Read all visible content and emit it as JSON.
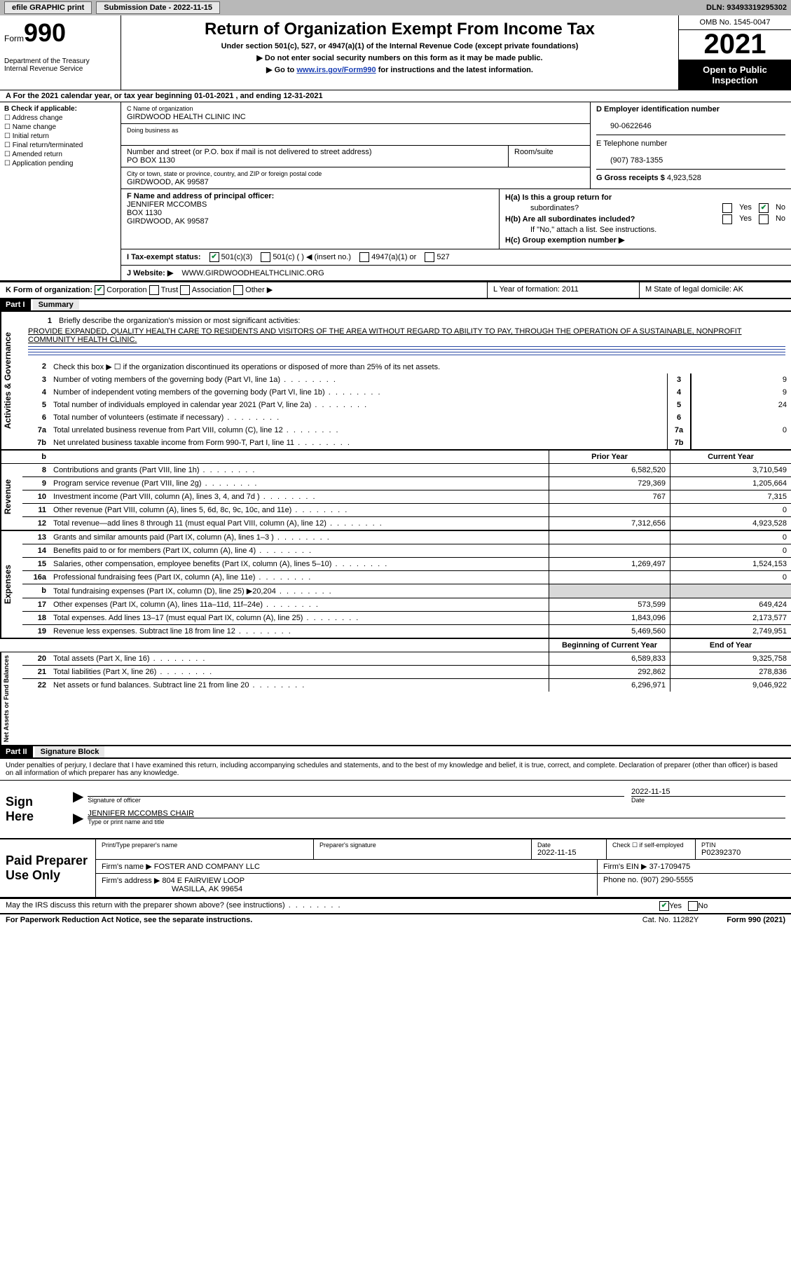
{
  "topbar": {
    "efile": "efile GRAPHIC print",
    "submission": "Submission Date - 2022-11-15",
    "dln": "DLN: 93493319295302"
  },
  "header": {
    "form_prefix": "Form",
    "form_number": "990",
    "title": "Return of Organization Exempt From Income Tax",
    "sub1": "Under section 501(c), 527, or 4947(a)(1) of the Internal Revenue Code (except private foundations)",
    "sub2": "Do not enter social security numbers on this form as it may be made public.",
    "sub3_prefix": "Go to ",
    "sub3_link": "www.irs.gov/Form990",
    "sub3_suffix": " for instructions and the latest information.",
    "dept": "Department of the Treasury\nInternal Revenue Service",
    "omb": "OMB No. 1545-0047",
    "year": "2021",
    "open": "Open to Public Inspection"
  },
  "row_a": "A For the 2021 calendar year, or tax year beginning 01-01-2021   , and ending 12-31-2021",
  "section_b": {
    "label": "B Check if applicable:",
    "items": [
      "Address change",
      "Name change",
      "Initial return",
      "Final return/terminated",
      "Amended return",
      "Application pending"
    ]
  },
  "section_c": {
    "name_lbl": "C Name of organization",
    "name": "GIRDWOOD HEALTH CLINIC INC",
    "dba_lbl": "Doing business as",
    "dba": "",
    "street_lbl": "Number and street (or P.O. box if mail is not delivered to street address)",
    "room_lbl": "Room/suite",
    "street": "PO BOX 1130",
    "city_lbl": "City or town, state or province, country, and ZIP or foreign postal code",
    "city": "GIRDWOOD, AK  99587"
  },
  "section_d": {
    "lbl": "D Employer identification number",
    "val": "90-0622646"
  },
  "section_e": {
    "lbl": "E Telephone number",
    "val": "(907) 783-1355"
  },
  "section_g": {
    "lbl": "G Gross receipts $",
    "val": "4,923,528"
  },
  "section_f": {
    "lbl": "F Name and address of principal officer:",
    "name": "JENNIFER MCCOMBS",
    "addr1": "BOX 1130",
    "addr2": "GIRDWOOD, AK  99587"
  },
  "section_h": {
    "a1": "H(a)  Is this a group return for",
    "a2": "subordinates?",
    "b1": "H(b)  Are all subordinates included?",
    "b2": "If \"No,\" attach a list. See instructions.",
    "c": "H(c)  Group exemption number ▶"
  },
  "row_i": {
    "lbl": "I   Tax-exempt status:",
    "opts": [
      "501(c)(3)",
      "501(c) (  ) ◀ (insert no.)",
      "4947(a)(1) or",
      "527"
    ]
  },
  "row_j": {
    "lbl": "J   Website: ▶",
    "val": "WWW.GIRDWOODHEALTHCLINIC.ORG"
  },
  "row_k": {
    "k_lbl": "K Form of organization:",
    "k_opts": [
      "Corporation",
      "Trust",
      "Association",
      "Other ▶"
    ],
    "l": "L Year of formation: 2011",
    "m": "M State of legal domicile: AK"
  },
  "part1": {
    "hdr": "Part I",
    "title": "Summary",
    "mission_lbl": "Briefly describe the organization's mission or most significant activities:",
    "mission": "PROVIDE EXPANDED, QUALITY HEALTH CARE TO RESIDENTS AND VISITORS OF THE AREA WITHOUT REGARD TO ABILITY TO PAY, THROUGH THE OPERATION OF A SUSTAINABLE, NONPROFIT COMMUNITY HEALTH CLINIC.",
    "line2": "Check this box ▶ ☐  if the organization discontinued its operations or disposed of more than 25% of its net assets.",
    "lines_ag": [
      {
        "n": "3",
        "desc": "Number of voting members of the governing body (Part VI, line 1a)",
        "v": "9"
      },
      {
        "n": "4",
        "desc": "Number of independent voting members of the governing body (Part VI, line 1b)",
        "v": "9"
      },
      {
        "n": "5",
        "desc": "Total number of individuals employed in calendar year 2021 (Part V, line 2a)",
        "v": "24"
      },
      {
        "n": "6",
        "desc": "Total number of volunteers (estimate if necessary)",
        "v": ""
      },
      {
        "n": "7a",
        "desc": "Total unrelated business revenue from Part VIII, column (C), line 12",
        "v": "0"
      },
      {
        "n": "7b",
        "desc": "Net unrelated business taxable income from Form 990-T, Part I, line 11",
        "v": ""
      }
    ],
    "hdr_prior": "Prior Year",
    "hdr_curr": "Current Year",
    "revenue": [
      {
        "n": "8",
        "desc": "Contributions and grants (Part VIII, line 1h)",
        "p": "6,582,520",
        "c": "3,710,549"
      },
      {
        "n": "9",
        "desc": "Program service revenue (Part VIII, line 2g)",
        "p": "729,369",
        "c": "1,205,664"
      },
      {
        "n": "10",
        "desc": "Investment income (Part VIII, column (A), lines 3, 4, and 7d )",
        "p": "767",
        "c": "7,315"
      },
      {
        "n": "11",
        "desc": "Other revenue (Part VIII, column (A), lines 5, 6d, 8c, 9c, 10c, and 11e)",
        "p": "",
        "c": "0"
      },
      {
        "n": "12",
        "desc": "Total revenue—add lines 8 through 11 (must equal Part VIII, column (A), line 12)",
        "p": "7,312,656",
        "c": "4,923,528"
      }
    ],
    "expenses": [
      {
        "n": "13",
        "desc": "Grants and similar amounts paid (Part IX, column (A), lines 1–3 )",
        "p": "",
        "c": "0"
      },
      {
        "n": "14",
        "desc": "Benefits paid to or for members (Part IX, column (A), line 4)",
        "p": "",
        "c": "0"
      },
      {
        "n": "15",
        "desc": "Salaries, other compensation, employee benefits (Part IX, column (A), lines 5–10)",
        "p": "1,269,497",
        "c": "1,524,153"
      },
      {
        "n": "16a",
        "desc": "Professional fundraising fees (Part IX, column (A), line 11e)",
        "p": "",
        "c": "0"
      },
      {
        "n": "b",
        "desc": "Total fundraising expenses (Part IX, column (D), line 25) ▶20,204",
        "p": "shade",
        "c": "shade"
      },
      {
        "n": "17",
        "desc": "Other expenses (Part IX, column (A), lines 11a–11d, 11f–24e)",
        "p": "573,599",
        "c": "649,424"
      },
      {
        "n": "18",
        "desc": "Total expenses. Add lines 13–17 (must equal Part IX, column (A), line 25)",
        "p": "1,843,096",
        "c": "2,173,577"
      },
      {
        "n": "19",
        "desc": "Revenue less expenses. Subtract line 18 from line 12",
        "p": "5,469,560",
        "c": "2,749,951"
      }
    ],
    "hdr_begin": "Beginning of Current Year",
    "hdr_end": "End of Year",
    "netassets": [
      {
        "n": "20",
        "desc": "Total assets (Part X, line 16)",
        "p": "6,589,833",
        "c": "9,325,758"
      },
      {
        "n": "21",
        "desc": "Total liabilities (Part X, line 26)",
        "p": "292,862",
        "c": "278,836"
      },
      {
        "n": "22",
        "desc": "Net assets or fund balances. Subtract line 21 from line 20",
        "p": "6,296,971",
        "c": "9,046,922"
      }
    ]
  },
  "part2": {
    "hdr": "Part II",
    "title": "Signature Block",
    "disclaim": "Under penalties of perjury, I declare that I have examined this return, including accompanying schedules and statements, and to the best of my knowledge and belief, it is true, correct, and complete. Declaration of preparer (other than officer) is based on all information of which preparer has any knowledge."
  },
  "sign": {
    "here": "Sign Here",
    "sig_officer_lbl": "Signature of officer",
    "date": "2022-11-15",
    "date_lbl": "Date",
    "name": "JENNIFER MCCOMBS CHAIR",
    "name_lbl": "Type or print name and title"
  },
  "paid": {
    "lbl": "Paid Preparer Use Only",
    "r1": {
      "c1_lbl": "Print/Type preparer's name",
      "c1": "",
      "c2_lbl": "Preparer's signature",
      "c2": "",
      "c3_lbl": "Date",
      "c3": "2022-11-15",
      "c4_lbl": "Check ☐ if self-employed",
      "c5_lbl": "PTIN",
      "c5": "P02392370"
    },
    "r2": {
      "lbl": "Firm's name    ▶",
      "val": "FOSTER AND COMPANY LLC",
      "ein_lbl": "Firm's EIN ▶",
      "ein": "37-1709475"
    },
    "r3": {
      "lbl": "Firm's address ▶",
      "val1": "804 E FAIRVIEW LOOP",
      "val2": "WASILLA, AK  99654",
      "ph_lbl": "Phone no.",
      "ph": "(907) 290-5555"
    }
  },
  "discuss": "May the IRS discuss this return with the preparer shown above? (see instructions)",
  "footer": {
    "pwr": "For Paperwork Reduction Act Notice, see the separate instructions.",
    "cat": "Cat. No. 11282Y",
    "formno": "Form 990 (2021)"
  }
}
